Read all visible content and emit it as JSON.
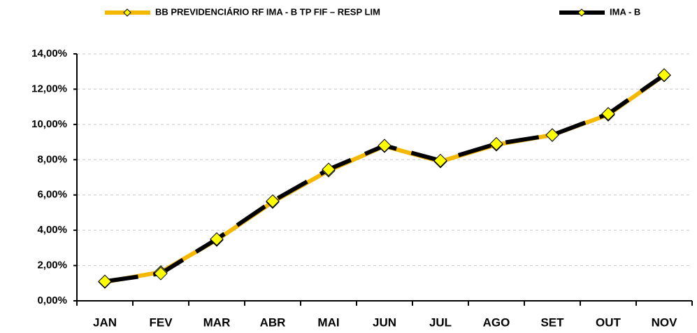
{
  "chart_data": {
    "type": "line",
    "categories": [
      "JAN",
      "FEV",
      "MAR",
      "ABR",
      "MAI",
      "JUN",
      "JUL",
      "AGO",
      "SET",
      "OUT",
      "NOV"
    ],
    "series": [
      {
        "name": "BB PREVIDENCIÁRIO RF IMA - B TP FIF – RESP LIM",
        "color": "#f5b800",
        "marker_color": "#ffff00",
        "values": [
          1.07,
          1.63,
          3.45,
          5.6,
          7.38,
          8.77,
          7.9,
          8.85,
          9.4,
          10.55,
          12.78
        ]
      },
      {
        "name": "IMA - B",
        "color": "#000000",
        "marker_color": "#ffff00",
        "values": [
          1.1,
          1.55,
          3.5,
          5.65,
          7.45,
          8.8,
          7.95,
          8.9,
          9.4,
          10.6,
          12.8
        ]
      }
    ],
    "ylim": [
      0,
      14
    ],
    "yticks": [
      {
        "value": 0,
        "label": "0,00%"
      },
      {
        "value": 2,
        "label": "2,00%"
      },
      {
        "value": 4,
        "label": "4,00%"
      },
      {
        "value": 6,
        "label": "6,00%"
      },
      {
        "value": 8,
        "label": "8,00%"
      },
      {
        "value": 10,
        "label": "10,00%"
      },
      {
        "value": 12,
        "label": "12,00%"
      },
      {
        "value": 14,
        "label": "14,00%"
      }
    ],
    "grid": true
  }
}
